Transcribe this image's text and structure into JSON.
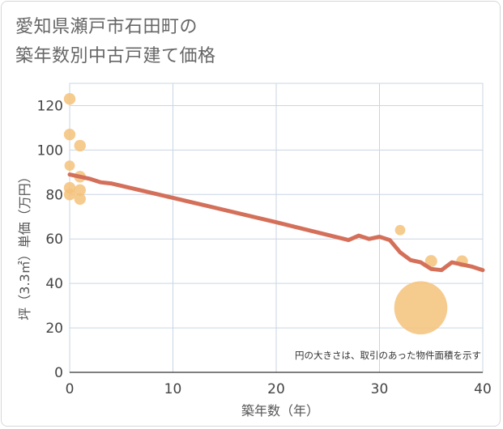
{
  "title": {
    "line1": "愛知県瀬戸市石田町の",
    "line2": "築年数別中古戸建て価格"
  },
  "colors": {
    "trend": "#d4705a",
    "bubble": "#f5c27a",
    "grid": "#c9d6e3"
  },
  "chart_data": {
    "type": "scatter",
    "title": "愛知県瀬戸市石田町の築年数別中古戸建て価格",
    "xlabel": "築年数（年）",
    "ylabel": "坪（3.3㎡）単価（万円）",
    "xlim": [
      0,
      40
    ],
    "ylim": [
      0,
      130
    ],
    "xticks": [
      0,
      10,
      20,
      30,
      40
    ],
    "yticks": [
      0,
      20,
      40,
      60,
      80,
      100,
      120
    ],
    "annotation": "円の大きさは、取引のあった物件面積を示す",
    "points": [
      {
        "x": 0,
        "y": 123,
        "size": 2
      },
      {
        "x": 0,
        "y": 107,
        "size": 2
      },
      {
        "x": 0,
        "y": 93,
        "size": 1.5
      },
      {
        "x": 0,
        "y": 83,
        "size": 2
      },
      {
        "x": 0,
        "y": 80,
        "size": 2
      },
      {
        "x": 1,
        "y": 102,
        "size": 2
      },
      {
        "x": 1,
        "y": 88,
        "size": 2
      },
      {
        "x": 1,
        "y": 82,
        "size": 2
      },
      {
        "x": 1,
        "y": 78,
        "size": 2
      },
      {
        "x": 32,
        "y": 64,
        "size": 1.5
      },
      {
        "x": 34,
        "y": 29,
        "size": 18
      },
      {
        "x": 35,
        "y": 50,
        "size": 2.2
      },
      {
        "x": 38,
        "y": 50,
        "size": 2
      }
    ],
    "trend": {
      "x": [
        0,
        1,
        2,
        3,
        4,
        10,
        20,
        27,
        28,
        29,
        30,
        31,
        32,
        33,
        34,
        35,
        36,
        37,
        38,
        39,
        40
      ],
      "y": [
        89,
        88,
        87,
        85.5,
        85,
        78.5,
        67.5,
        59.5,
        61.5,
        60,
        61,
        59.5,
        54,
        50.5,
        49.5,
        46.5,
        46,
        49.5,
        48.5,
        47.5,
        46
      ]
    }
  }
}
